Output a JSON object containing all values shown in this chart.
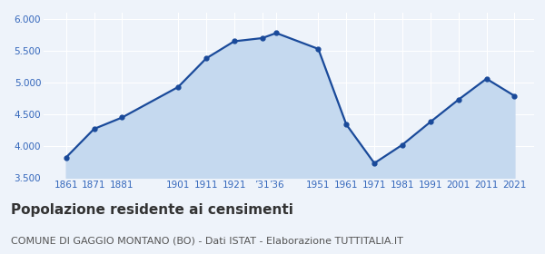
{
  "years": [
    1861,
    1871,
    1881,
    1901,
    1911,
    1921,
    1931,
    1936,
    1951,
    1961,
    1971,
    1981,
    1991,
    2001,
    2011,
    2021
  ],
  "population": [
    3820,
    4270,
    4450,
    4930,
    5380,
    5650,
    5700,
    5780,
    5530,
    4340,
    3730,
    4020,
    4380,
    4730,
    5060,
    4790
  ],
  "y_ticks": [
    3500,
    4000,
    4500,
    5000,
    5500,
    6000
  ],
  "ylim": [
    3500,
    6100
  ],
  "xlim": [
    1853,
    2028
  ],
  "line_color": "#1a4a9a",
  "fill_color": "#c5d9ef",
  "marker_color": "#1a4a9a",
  "bg_color": "#eef3fa",
  "title": "Popolazione residente ai censimenti",
  "subtitle": "COMUNE DI GAGGIO MONTANO (BO) - Dati ISTAT - Elaborazione TUTTITALIA.IT",
  "title_fontsize": 11,
  "subtitle_fontsize": 8,
  "title_color": "#333333",
  "subtitle_color": "#555555",
  "tick_color": "#3366bb",
  "grid_color": "#ffffff",
  "x_tick_positions": [
    1861,
    1871,
    1881,
    1901,
    1911,
    1921,
    1931,
    1936,
    1951,
    1961,
    1971,
    1981,
    1991,
    2001,
    2011,
    2021
  ],
  "x_tick_labels": [
    "1861",
    "1871",
    "1881",
    "1901",
    "1911",
    "1921",
    "’31",
    "’36",
    "1951",
    "1961",
    "1971",
    "1981",
    "1991",
    "2001",
    "2011",
    "2021"
  ]
}
